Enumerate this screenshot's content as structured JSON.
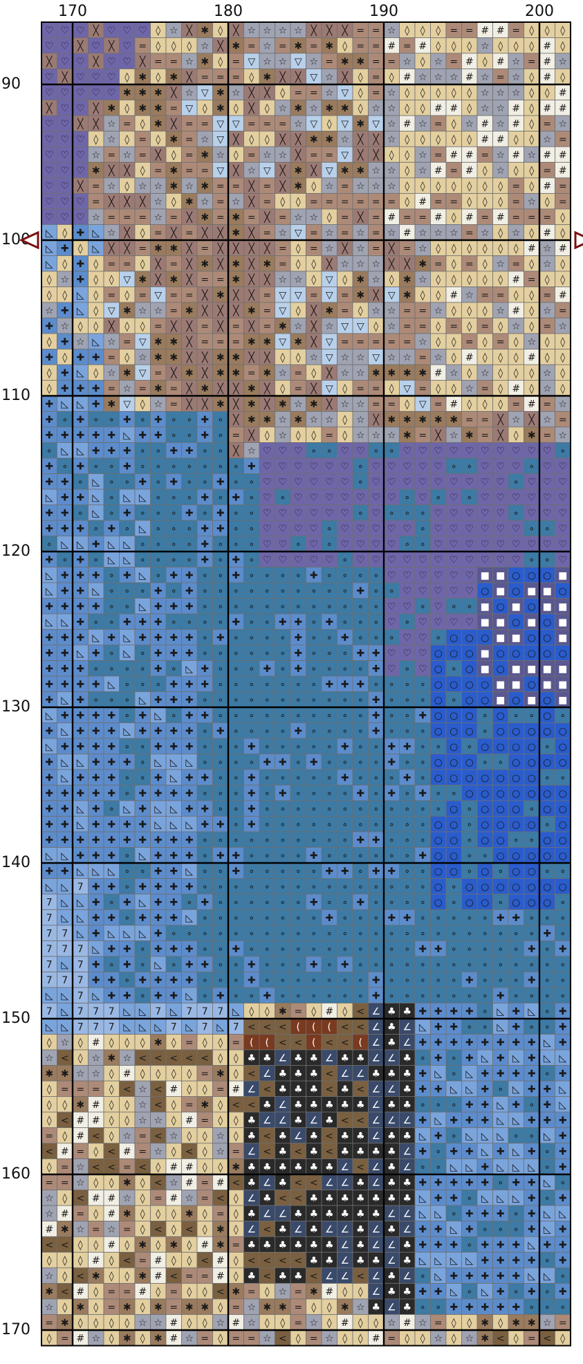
{
  "pattern": {
    "columns": {
      "first": 168,
      "last": 201
    },
    "rows": {
      "first": 86,
      "last": 170
    },
    "column_labels": [
      "170",
      "180",
      "190",
      "200"
    ],
    "row_labels": [
      "90",
      "100",
      "110",
      "120",
      "130",
      "140",
      "150",
      "160",
      "170"
    ],
    "center_row": 100,
    "grid_color": "#6f6f6f",
    "major_line_color": "#000000",
    "marker_color": "#7a1010",
    "regions": [
      {
        "symbol": "heart",
        "color": "#6e66a8",
        "glyph": "♡",
        "area": "upper-left"
      },
      {
        "symbol": "cross",
        "color": "#9c7a74",
        "glyph": "╳",
        "area": "upper-left diagonal band"
      },
      {
        "symbol": "equals",
        "color": "#ad8a78",
        "glyph": "=",
        "area": "upper band"
      },
      {
        "symbol": "star",
        "color": "#9fa3b2",
        "glyph": "☆",
        "area": "upper band"
      },
      {
        "symbol": "diamond",
        "color": "#e3cf9f",
        "glyph": "◊",
        "area": "upper-right and bottom"
      },
      {
        "symbol": "hash",
        "color": "#f1eee4",
        "glyph": "#",
        "area": "upper-right highlights"
      },
      {
        "symbol": "asterisk",
        "color": "#9a7b5e",
        "glyph": "✱",
        "area": "upper band"
      },
      {
        "symbol": "triangle",
        "color": "#b8d0ea",
        "glyph": "▽",
        "area": "scattered"
      },
      {
        "symbol": "dot",
        "color": "#3d7aa4",
        "glyph": "∘",
        "area": "center water"
      },
      {
        "symbol": "plus",
        "color": "#5c8ccc",
        "glyph": "✚",
        "area": "left water"
      },
      {
        "symbol": "halftriangle",
        "color": "#7aa4dc",
        "glyph": "◺",
        "area": "left water"
      },
      {
        "symbol": "seven",
        "color": "#9ab8e4",
        "glyph": "7",
        "area": "lower-left water"
      },
      {
        "symbol": "circle",
        "color": "#2a5ccc",
        "glyph": "○",
        "area": "right water"
      },
      {
        "symbol": "square",
        "color": "#5a5890",
        "glyph": "■",
        "area": "right"
      },
      {
        "symbol": "club",
        "color": "#2a2a2a",
        "glyph": "♣",
        "area": "lower center rock"
      },
      {
        "symbol": "lessthan",
        "color": "#7a6040",
        "glyph": "<",
        "area": "lower center"
      },
      {
        "symbol": "crescent",
        "color": "#7a3a20",
        "glyph": "(",
        "area": "lower center"
      },
      {
        "symbol": "angle",
        "color": "#3a4a6a",
        "glyph": "∠",
        "area": "lower center"
      }
    ]
  }
}
